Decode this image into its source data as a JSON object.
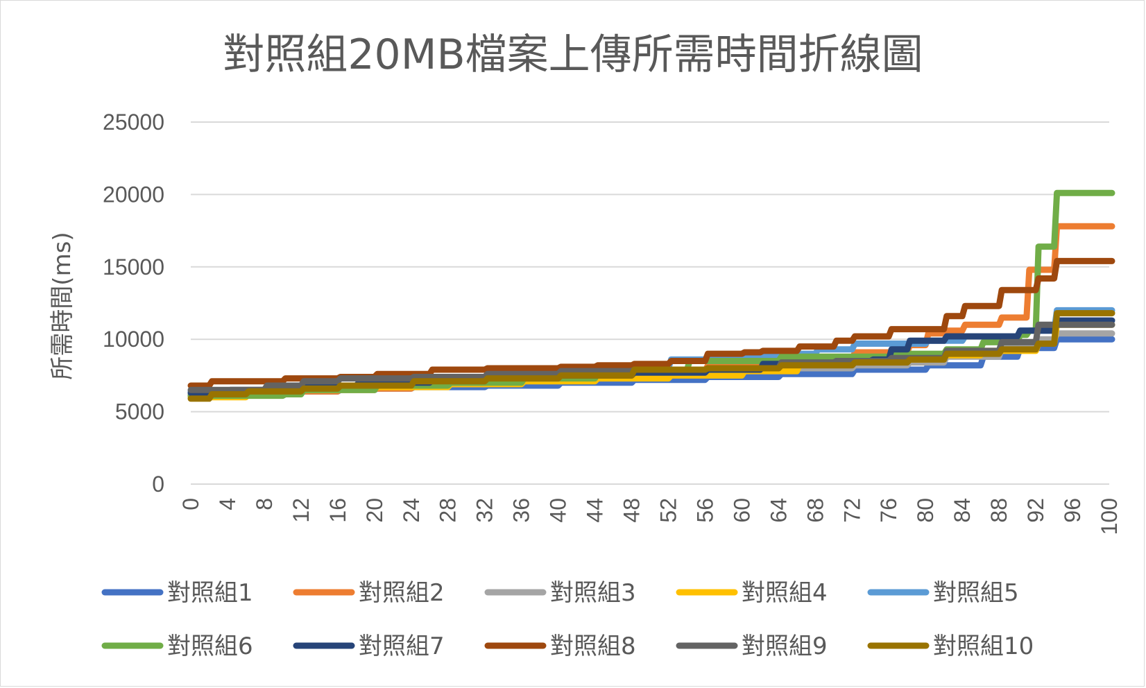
{
  "chart_data": {
    "type": "line",
    "title": "對照組20MB檔案上傳所需時間折線圖",
    "xlabel": "",
    "ylabel": "所需時間(ms)",
    "ylim": [
      0,
      25000
    ],
    "yticks": [
      "0",
      "5000",
      "10000",
      "15000",
      "20000",
      "25000"
    ],
    "xlim": [
      0,
      100
    ],
    "xticks": [
      "0",
      "4",
      "8",
      "12",
      "16",
      "20",
      "24",
      "28",
      "32",
      "36",
      "40",
      "44",
      "48",
      "52",
      "56",
      "60",
      "64",
      "68",
      "72",
      "76",
      "80",
      "84",
      "88",
      "92",
      "96",
      "100"
    ],
    "grid": true,
    "legend_position": "bottom",
    "series": [
      {
        "name": "對照組1",
        "color": "#4472c4",
        "points": [
          [
            0,
            6100
          ],
          [
            2,
            6200
          ],
          [
            10,
            6300
          ],
          [
            12,
            6400
          ],
          [
            16,
            6500
          ],
          [
            20,
            6600
          ],
          [
            24,
            6700
          ],
          [
            32,
            6800
          ],
          [
            40,
            7000
          ],
          [
            48,
            7200
          ],
          [
            56,
            7400
          ],
          [
            64,
            7600
          ],
          [
            72,
            7900
          ],
          [
            80,
            8200
          ],
          [
            86,
            8800
          ],
          [
            90,
            9400
          ],
          [
            94,
            10000
          ],
          [
            100,
            10000
          ]
        ]
      },
      {
        "name": "對照組2",
        "color": "#ed7d31",
        "points": [
          [
            0,
            6200
          ],
          [
            4,
            6300
          ],
          [
            10,
            6400
          ],
          [
            16,
            6600
          ],
          [
            24,
            6900
          ],
          [
            32,
            7200
          ],
          [
            40,
            7500
          ],
          [
            48,
            7800
          ],
          [
            56,
            8200
          ],
          [
            64,
            8600
          ],
          [
            72,
            9100
          ],
          [
            78,
            9600
          ],
          [
            80,
            10400
          ],
          [
            82,
            10600
          ],
          [
            84,
            11000
          ],
          [
            88,
            11500
          ],
          [
            91,
            14800
          ],
          [
            94,
            17800
          ],
          [
            100,
            17800
          ]
        ]
      },
      {
        "name": "對照組3",
        "color": "#a5a5a5",
        "points": [
          [
            0,
            6200
          ],
          [
            8,
            6500
          ],
          [
            16,
            6700
          ],
          [
            24,
            6900
          ],
          [
            32,
            7200
          ],
          [
            40,
            7400
          ],
          [
            48,
            7600
          ],
          [
            56,
            7800
          ],
          [
            64,
            8000
          ],
          [
            72,
            8200
          ],
          [
            78,
            8400
          ],
          [
            82,
            8800
          ],
          [
            88,
            9400
          ],
          [
            92,
            10000
          ],
          [
            94,
            10400
          ],
          [
            100,
            10400
          ]
        ]
      },
      {
        "name": "對照組4",
        "color": "#ffc000",
        "points": [
          [
            0,
            6000
          ],
          [
            6,
            6300
          ],
          [
            12,
            6500
          ],
          [
            20,
            6700
          ],
          [
            28,
            6900
          ],
          [
            36,
            7100
          ],
          [
            44,
            7300
          ],
          [
            52,
            7500
          ],
          [
            60,
            7800
          ],
          [
            66,
            8300
          ],
          [
            72,
            8600
          ],
          [
            80,
            8900
          ],
          [
            86,
            9200
          ],
          [
            92,
            9700
          ],
          [
            94,
            11000
          ],
          [
            100,
            11000
          ]
        ]
      },
      {
        "name": "對照組5",
        "color": "#5b9bd5",
        "points": [
          [
            0,
            6400
          ],
          [
            8,
            6600
          ],
          [
            16,
            6800
          ],
          [
            24,
            7000
          ],
          [
            32,
            7300
          ],
          [
            40,
            7600
          ],
          [
            48,
            8000
          ],
          [
            52,
            8600
          ],
          [
            60,
            8800
          ],
          [
            64,
            9000
          ],
          [
            68,
            9300
          ],
          [
            72,
            9700
          ],
          [
            80,
            9900
          ],
          [
            84,
            10200
          ],
          [
            90,
            10600
          ],
          [
            94,
            12000
          ],
          [
            100,
            12000
          ]
        ]
      },
      {
        "name": "對照組6",
        "color": "#70ad47",
        "points": [
          [
            0,
            6100
          ],
          [
            10,
            6200
          ],
          [
            12,
            6500
          ],
          [
            20,
            6800
          ],
          [
            28,
            7000
          ],
          [
            36,
            7300
          ],
          [
            44,
            7600
          ],
          [
            48,
            7800
          ],
          [
            54,
            8500
          ],
          [
            64,
            8800
          ],
          [
            72,
            8800
          ],
          [
            76,
            9000
          ],
          [
            82,
            9300
          ],
          [
            86,
            9800
          ],
          [
            90,
            10300
          ],
          [
            91,
            10600
          ],
          [
            92,
            16400
          ],
          [
            94,
            20100
          ],
          [
            100,
            20100
          ]
        ]
      },
      {
        "name": "對照組7",
        "color": "#264478",
        "points": [
          [
            0,
            6300
          ],
          [
            4,
            6500
          ],
          [
            10,
            6800
          ],
          [
            18,
            7000
          ],
          [
            26,
            7200
          ],
          [
            32,
            7400
          ],
          [
            40,
            7500
          ],
          [
            48,
            7700
          ],
          [
            56,
            7900
          ],
          [
            62,
            8300
          ],
          [
            70,
            8500
          ],
          [
            74,
            8600
          ],
          [
            76,
            9300
          ],
          [
            78,
            9900
          ],
          [
            82,
            10200
          ],
          [
            90,
            10600
          ],
          [
            94,
            11300
          ],
          [
            100,
            11300
          ]
        ]
      },
      {
        "name": "對照組8",
        "color": "#9e480e",
        "points": [
          [
            0,
            6800
          ],
          [
            2,
            7100
          ],
          [
            10,
            7300
          ],
          [
            16,
            7400
          ],
          [
            20,
            7600
          ],
          [
            26,
            7900
          ],
          [
            32,
            8000
          ],
          [
            40,
            8100
          ],
          [
            44,
            8200
          ],
          [
            48,
            8300
          ],
          [
            52,
            8500
          ],
          [
            56,
            9000
          ],
          [
            60,
            9100
          ],
          [
            62,
            9200
          ],
          [
            66,
            9500
          ],
          [
            70,
            9900
          ],
          [
            72,
            10200
          ],
          [
            76,
            10700
          ],
          [
            82,
            11600
          ],
          [
            84,
            12300
          ],
          [
            88,
            13400
          ],
          [
            90,
            13400
          ],
          [
            92,
            14200
          ],
          [
            94,
            15400
          ],
          [
            100,
            15400
          ]
        ]
      },
      {
        "name": "對照組9",
        "color": "#636363",
        "points": [
          [
            0,
            6500
          ],
          [
            8,
            6800
          ],
          [
            12,
            7100
          ],
          [
            16,
            7300
          ],
          [
            24,
            7400
          ],
          [
            32,
            7600
          ],
          [
            40,
            7800
          ],
          [
            48,
            7900
          ],
          [
            56,
            8000
          ],
          [
            64,
            8400
          ],
          [
            70,
            8500
          ],
          [
            76,
            8700
          ],
          [
            82,
            9200
          ],
          [
            88,
            9800
          ],
          [
            92,
            11000
          ],
          [
            100,
            11000
          ]
        ]
      },
      {
        "name": "對照組10",
        "color": "#997300",
        "points": [
          [
            0,
            5900
          ],
          [
            2,
            6200
          ],
          [
            6,
            6400
          ],
          [
            12,
            6600
          ],
          [
            16,
            6800
          ],
          [
            24,
            7100
          ],
          [
            32,
            7300
          ],
          [
            40,
            7500
          ],
          [
            48,
            7900
          ],
          [
            56,
            8000
          ],
          [
            64,
            8200
          ],
          [
            72,
            8400
          ],
          [
            78,
            8600
          ],
          [
            82,
            9000
          ],
          [
            88,
            9300
          ],
          [
            92,
            9700
          ],
          [
            94,
            11800
          ],
          [
            100,
            11800
          ]
        ]
      }
    ]
  }
}
